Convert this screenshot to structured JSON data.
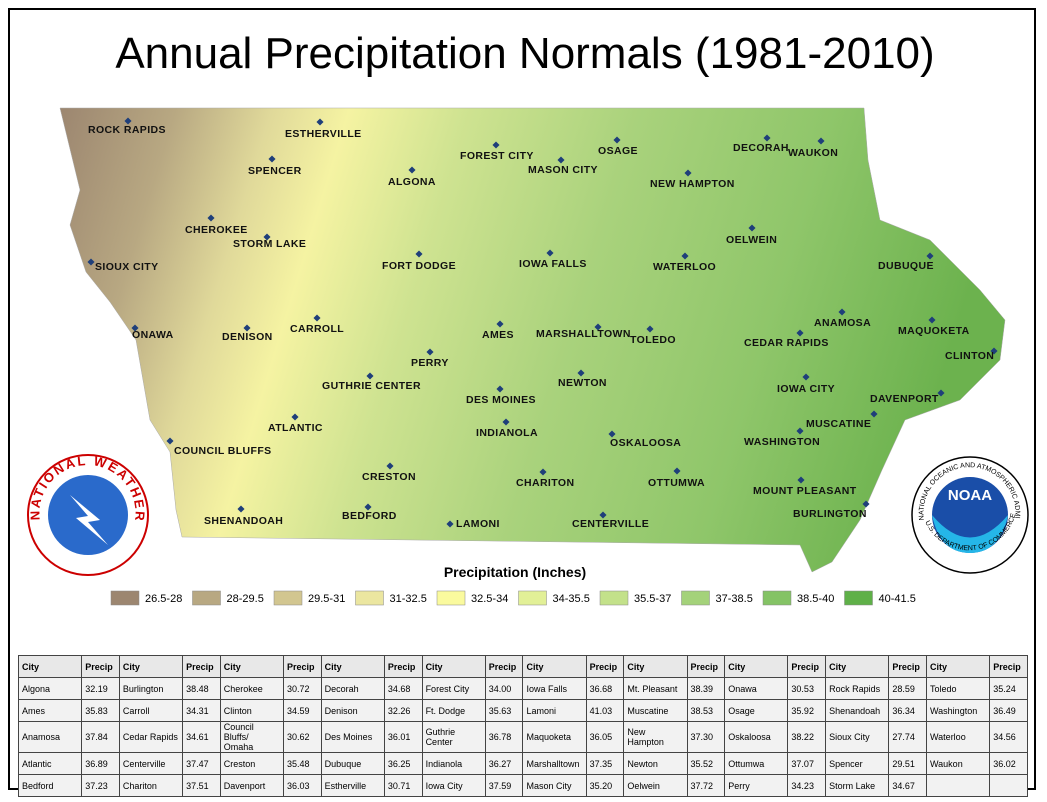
{
  "title": "Annual Precipitation Normals (1981-2010)",
  "map": {
    "cities": [
      "ROCK RAPIDS",
      "ESTHERVILLE",
      "SPENCER",
      "ALGONA",
      "FOREST CITY",
      "MASON CITY",
      "OSAGE",
      "DECORAH",
      "WAUKON",
      "NEW HAMPTON",
      "CHEROKEE",
      "STORM LAKE",
      "SIOUX CITY",
      "FORT DODGE",
      "IOWA FALLS",
      "WATERLOO",
      "OELWEIN",
      "DUBUQUE",
      "ONAWA",
      "DENISON",
      "CARROLL",
      "AMES",
      "MARSHALLTOWN",
      "TOLEDO",
      "ANAMOSA",
      "MAQUOKETA",
      "CEDAR RAPIDS",
      "CLINTON",
      "PERRY",
      "GUTHRIE CENTER",
      "NEWTON",
      "DES MOINES",
      "IOWA CITY",
      "DAVENPORT",
      "ATLANTIC",
      "INDIANOLA",
      "MUSCATINE",
      "WASHINGTON",
      "OSKALOOSA",
      "COUNCIL BLUFFS",
      "CRESTON",
      "CHARITON",
      "OTTUMWA",
      "MOUNT PLEASANT",
      "BEDFORD",
      "SHENANDOAH",
      "BURLINGTON",
      "LAMONI",
      "CENTERVILLE"
    ]
  },
  "legend": {
    "title": "Precipitation (Inches)",
    "items": [
      {
        "label": "26.5-28",
        "color": "#9c8670"
      },
      {
        "label": "28-29.5",
        "color": "#b8a882"
      },
      {
        "label": "29.5-31",
        "color": "#d2c690"
      },
      {
        "label": "31-32.5",
        "color": "#ebe6a0"
      },
      {
        "label": "32.5-34",
        "color": "#fafa9e"
      },
      {
        "label": "34-35.5",
        "color": "#e2f097"
      },
      {
        "label": "35.5-37",
        "color": "#c3e18a"
      },
      {
        "label": "37-38.5",
        "color": "#a4d27a"
      },
      {
        "label": "38.5-40",
        "color": "#84c365"
      },
      {
        "label": "40-41.5",
        "color": "#5fb048"
      }
    ]
  },
  "logos": {
    "nws": "NATIONAL WEATHER SERVICE",
    "noaa": "NOAA",
    "noaa_ring": "NATIONAL OCEANIC AND ATMOSPHERIC ADMINISTRATION",
    "noaa_dept": "U.S. DEPARTMENT OF COMMERCE"
  },
  "table": {
    "header": [
      "City",
      "Precip",
      "City",
      "Precip",
      "City",
      "Precip",
      "City",
      "Precip",
      "City",
      "Precip",
      "City",
      "Precip",
      "City",
      "Precip",
      "City",
      "Precip",
      "City",
      "Precip",
      "City",
      "Precip"
    ],
    "rows": [
      [
        "Algona",
        "32.19",
        "Burlington",
        "38.48",
        "Cherokee",
        "30.72",
        "Decorah",
        "34.68",
        "Forest City",
        "34.00",
        "Iowa Falls",
        "36.68",
        "Mt. Pleasant",
        "38.39",
        "Onawa",
        "30.53",
        "Rock Rapids",
        "28.59",
        "Toledo",
        "35.24"
      ],
      [
        "Ames",
        "35.83",
        "Carroll",
        "34.31",
        "Clinton",
        "34.59",
        "Denison",
        "32.26",
        "Ft. Dodge",
        "35.63",
        "Lamoni",
        "41.03",
        "Muscatine",
        "38.53",
        "Osage",
        "35.92",
        "Shenandoah",
        "36.34",
        "Washington",
        "36.49"
      ],
      [
        "Anamosa",
        "37.84",
        "Cedar Rapids",
        "34.61",
        "Council Bluffs/ Omaha",
        "30.62",
        "Des Moines",
        "36.01",
        "Guthrie Center",
        "36.78",
        "Maquoketa",
        "36.05",
        "New Hampton",
        "37.30",
        "Oskaloosa",
        "38.22",
        "Sioux City",
        "27.74",
        "Waterloo",
        "34.56"
      ],
      [
        "Atlantic",
        "36.89",
        "Centerville",
        "37.47",
        "Creston",
        "35.48",
        "Dubuque",
        "36.25",
        "Indianola",
        "36.27",
        "Marshalltown",
        "37.35",
        "Newton",
        "35.52",
        "Ottumwa",
        "37.07",
        "Spencer",
        "29.51",
        "Waukon",
        "36.02"
      ],
      [
        "Bedford",
        "37.23",
        "Chariton",
        "37.51",
        "Davenport",
        "36.03",
        "Estherville",
        "30.71",
        "Iowa City",
        "37.59",
        "Mason City",
        "35.20",
        "Oelwein",
        "37.72",
        "Perry",
        "34.23",
        "Storm Lake",
        "34.67"
      ]
    ]
  }
}
